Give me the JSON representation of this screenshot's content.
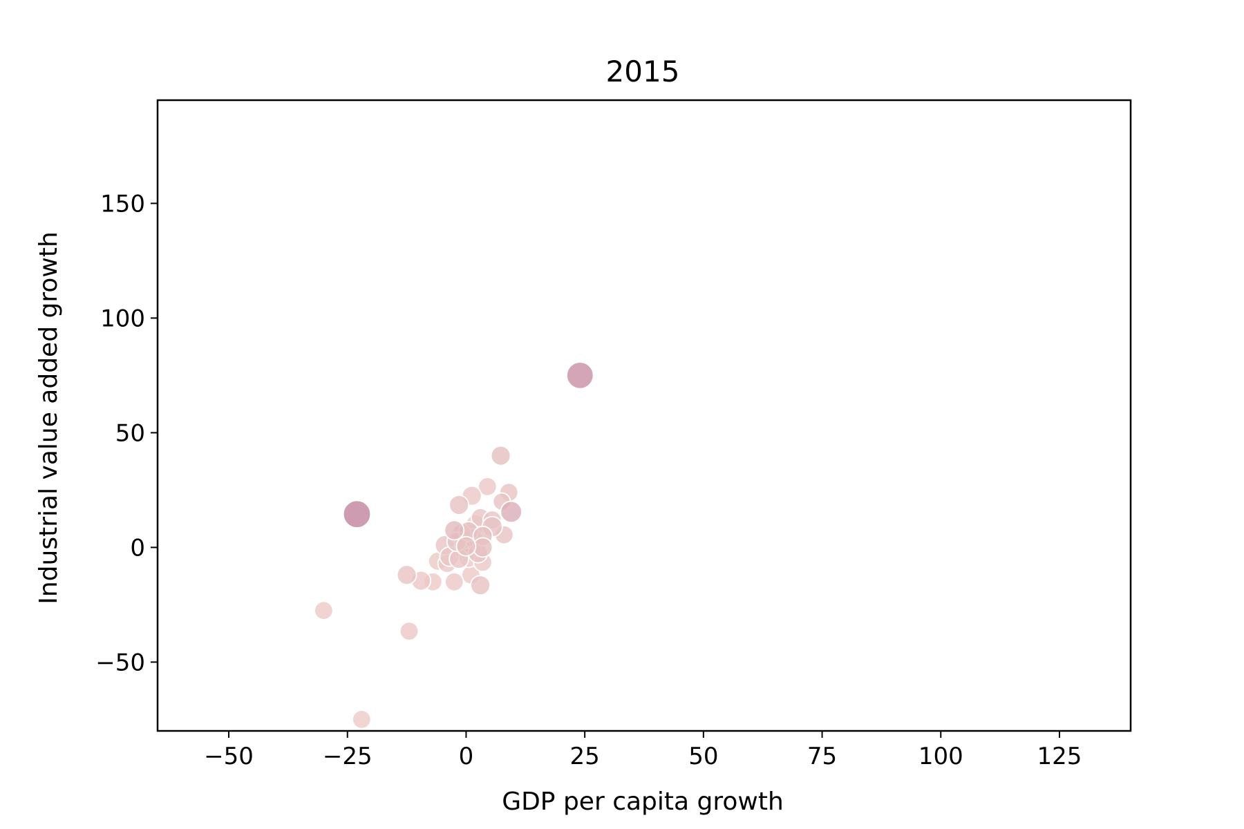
{
  "chart_data": {
    "type": "scatter",
    "title": "2015",
    "xlabel": "GDP per capita growth",
    "ylabel": "Industrial value added growth",
    "xlim": [
      -65,
      140
    ],
    "ylim": [
      -80,
      195
    ],
    "xticks": [
      -50,
      -25,
      0,
      25,
      50,
      75,
      100,
      125
    ],
    "yticks": [
      -50,
      0,
      50,
      100,
      150
    ],
    "grid": false,
    "legend": "none",
    "color_scale": {
      "low": "#f2d3cd",
      "high": "#b97898"
    },
    "points": [
      {
        "x": 24.0,
        "y": 75.0,
        "size": 1.9,
        "shade": 0.72
      },
      {
        "x": -23.0,
        "y": 14.5,
        "size": 2.0,
        "shade": 0.85
      },
      {
        "x": 7.3,
        "y": 40.0,
        "size": 1.0,
        "shade": 0.2
      },
      {
        "x": 4.5,
        "y": 26.5,
        "size": 0.9,
        "shade": 0.12
      },
      {
        "x": 9.0,
        "y": 24.0,
        "size": 0.9,
        "shade": 0.15
      },
      {
        "x": 1.2,
        "y": 22.5,
        "size": 1.0,
        "shade": 0.12
      },
      {
        "x": -1.5,
        "y": 18.5,
        "size": 1.0,
        "shade": 0.18
      },
      {
        "x": 9.5,
        "y": 15.5,
        "size": 1.2,
        "shade": 0.4
      },
      {
        "x": 7.5,
        "y": 20.0,
        "size": 0.8,
        "shade": 0.15
      },
      {
        "x": 3.0,
        "y": 13.0,
        "size": 0.9,
        "shade": 0.14
      },
      {
        "x": 5.5,
        "y": 12.0,
        "size": 0.9,
        "shade": 0.14
      },
      {
        "x": 2.0,
        "y": 10.0,
        "size": 1.0,
        "shade": 0.12
      },
      {
        "x": -2.5,
        "y": 7.5,
        "size": 1.0,
        "shade": 0.25
      },
      {
        "x": -1.0,
        "y": 6.0,
        "size": 1.0,
        "shade": 0.18
      },
      {
        "x": 0.5,
        "y": 7.0,
        "size": 1.0,
        "shade": 0.2
      },
      {
        "x": 5.5,
        "y": 9.0,
        "size": 1.1,
        "shade": 0.18
      },
      {
        "x": 8.0,
        "y": 5.5,
        "size": 0.9,
        "shade": 0.15
      },
      {
        "x": 3.5,
        "y": 5.0,
        "size": 1.0,
        "shade": 0.2
      },
      {
        "x": 1.5,
        "y": 4.0,
        "size": 1.0,
        "shade": 0.15
      },
      {
        "x": -4.5,
        "y": 1.0,
        "size": 1.0,
        "shade": 0.14
      },
      {
        "x": -2.0,
        "y": 2.5,
        "size": 1.0,
        "shade": 0.18
      },
      {
        "x": 0.0,
        "y": 0.5,
        "size": 1.0,
        "shade": 0.12
      },
      {
        "x": 1.0,
        "y": -1.5,
        "size": 1.0,
        "shade": 0.12
      },
      {
        "x": 3.5,
        "y": 0.0,
        "size": 1.0,
        "shade": 0.2
      },
      {
        "x": 2.5,
        "y": -2.5,
        "size": 1.0,
        "shade": 0.15
      },
      {
        "x": -3.5,
        "y": -4.0,
        "size": 1.0,
        "shade": 0.14
      },
      {
        "x": -1.5,
        "y": -5.0,
        "size": 1.0,
        "shade": 0.14
      },
      {
        "x": 0.5,
        "y": -4.5,
        "size": 1.0,
        "shade": 0.12
      },
      {
        "x": 3.5,
        "y": -6.5,
        "size": 0.9,
        "shade": 0.12
      },
      {
        "x": -6.0,
        "y": -6.0,
        "size": 0.9,
        "shade": 0.1
      },
      {
        "x": -4.0,
        "y": -7.0,
        "size": 0.9,
        "shade": 0.12
      },
      {
        "x": 1.0,
        "y": -12.0,
        "size": 0.9,
        "shade": 0.1
      },
      {
        "x": -2.5,
        "y": -15.0,
        "size": 0.9,
        "shade": 0.12
      },
      {
        "x": 3.0,
        "y": -16.5,
        "size": 1.0,
        "shade": 0.18
      },
      {
        "x": -7.0,
        "y": -15.0,
        "size": 0.9,
        "shade": 0.1
      },
      {
        "x": -9.5,
        "y": -14.5,
        "size": 1.0,
        "shade": 0.12
      },
      {
        "x": -12.5,
        "y": -12.0,
        "size": 1.0,
        "shade": 0.15
      },
      {
        "x": -30.0,
        "y": -27.5,
        "size": 0.9,
        "shade": 0.1
      },
      {
        "x": -12.0,
        "y": -36.5,
        "size": 0.9,
        "shade": 0.12
      },
      {
        "x": -22.0,
        "y": -75.0,
        "size": 0.9,
        "shade": 0.08
      },
      {
        "x": 0.0,
        "y": 0.5,
        "size": 1.0,
        "shade": 0.2
      }
    ]
  }
}
